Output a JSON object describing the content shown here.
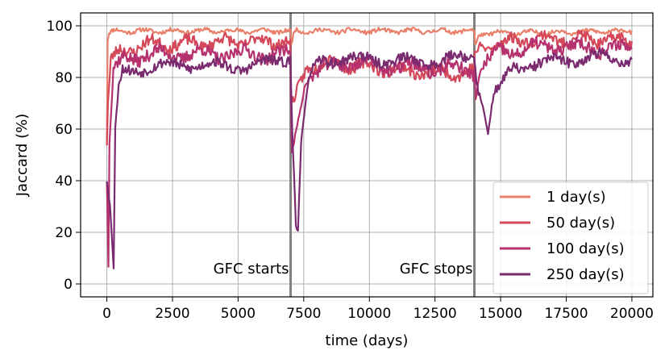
{
  "chart_data": {
    "type": "line",
    "title": "",
    "xlabel": "time (days)",
    "ylabel": "Jaccard (%)",
    "xlim": [
      -1000,
      20800
    ],
    "ylim": [
      -5,
      105
    ],
    "xticks": [
      0,
      2500,
      5000,
      7500,
      10000,
      12500,
      15000,
      17500,
      20000
    ],
    "yticks": [
      0,
      20,
      40,
      60,
      80,
      100
    ],
    "grid": true,
    "legend_position": "bottom-right",
    "vlines": [
      {
        "x": 7000,
        "label": "GFC starts",
        "color": "#808080"
      },
      {
        "x": 14000,
        "label": "GFC stops",
        "color": "#808080"
      }
    ],
    "series": [
      {
        "name": "1 day(s)",
        "color": "#e8806a",
        "anchors": [
          [
            0,
            54
          ],
          [
            30,
            94
          ],
          [
            80,
            97
          ],
          [
            300,
            98
          ],
          [
            7000,
            98
          ],
          [
            7020,
            92
          ],
          [
            7150,
            98
          ],
          [
            14000,
            98
          ],
          [
            14030,
            92
          ],
          [
            14200,
            97
          ],
          [
            20000,
            98
          ]
        ],
        "noise": 0.8,
        "seed": 11
      },
      {
        "name": "50 day(s)",
        "color": "#d4485a",
        "anchors": [
          [
            0,
            54
          ],
          [
            40,
            70
          ],
          [
            150,
            86
          ],
          [
            500,
            90
          ],
          [
            1500,
            93
          ],
          [
            3000,
            93
          ],
          [
            5000,
            94
          ],
          [
            6990,
            94
          ],
          [
            7010,
            68
          ],
          [
            7200,
            72
          ],
          [
            7600,
            84
          ],
          [
            8500,
            86
          ],
          [
            10000,
            84
          ],
          [
            12000,
            82
          ],
          [
            13990,
            82
          ],
          [
            14010,
            88
          ],
          [
            14300,
            92
          ],
          [
            16000,
            95
          ],
          [
            18000,
            95
          ],
          [
            20000,
            94
          ]
        ],
        "noise": 2.2,
        "seed": 23
      },
      {
        "name": "100 day(s)",
        "color": "#b5326e",
        "anchors": [
          [
            0,
            40
          ],
          [
            60,
            7
          ],
          [
            100,
            55
          ],
          [
            250,
            82
          ],
          [
            700,
            88
          ],
          [
            2000,
            89
          ],
          [
            5000,
            89
          ],
          [
            6990,
            89
          ],
          [
            7050,
            50
          ],
          [
            7250,
            62
          ],
          [
            7600,
            80
          ],
          [
            9000,
            86
          ],
          [
            11000,
            84
          ],
          [
            13990,
            83
          ],
          [
            14050,
            75
          ],
          [
            14300,
            84
          ],
          [
            15000,
            90
          ],
          [
            17000,
            92
          ],
          [
            20000,
            91
          ]
        ],
        "noise": 2.5,
        "seed": 37
      },
      {
        "name": "250 day(s)",
        "color": "#7a2a6e",
        "anchors": [
          [
            0,
            40
          ],
          [
            120,
            30
          ],
          [
            260,
            6
          ],
          [
            320,
            60
          ],
          [
            450,
            76
          ],
          [
            600,
            82
          ],
          [
            1500,
            84
          ],
          [
            3000,
            85
          ],
          [
            5500,
            84
          ],
          [
            6990,
            88
          ],
          [
            7060,
            60
          ],
          [
            7200,
            25
          ],
          [
            7280,
            21
          ],
          [
            7400,
            55
          ],
          [
            7700,
            80
          ],
          [
            8200,
            87
          ],
          [
            10000,
            87
          ],
          [
            12000,
            86
          ],
          [
            13990,
            88
          ],
          [
            14080,
            80
          ],
          [
            14400,
            65
          ],
          [
            14520,
            58
          ],
          [
            14700,
            72
          ],
          [
            15500,
            84
          ],
          [
            17000,
            86
          ],
          [
            18500,
            88
          ],
          [
            20000,
            87
          ]
        ],
        "noise": 2.0,
        "seed": 53
      }
    ],
    "annotations": [
      "GFC starts",
      "GFC stops"
    ]
  }
}
